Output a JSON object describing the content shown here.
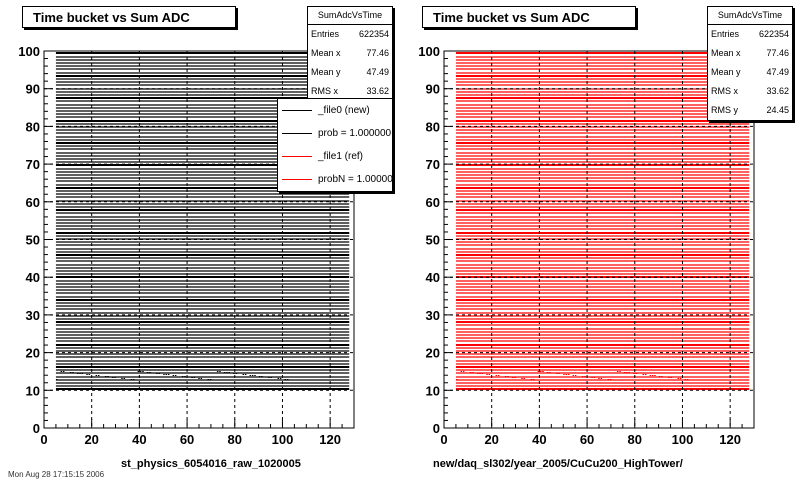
{
  "footer_text": "Mon Aug 28 17:15:15 2006",
  "colors": {
    "file0": "#000000",
    "file1": "#ff0000"
  },
  "chart_data": [
    {
      "type": "heatmap",
      "title": "Time bucket vs Sum ADC",
      "xlabel": "st_physics_6054016_raw_1020005",
      "ylabel": "",
      "xlim": [
        0,
        130
      ],
      "ylim": [
        0,
        100
      ],
      "xticks": [
        0,
        20,
        40,
        60,
        80,
        100,
        120
      ],
      "yticks": [
        0,
        10,
        20,
        30,
        40,
        50,
        60,
        70,
        80,
        90,
        100
      ],
      "grid": true,
      "fill_x_range": [
        5,
        128
      ],
      "fill_y_range": [
        10,
        100
      ],
      "series_color": "#000000",
      "stats": {
        "name": "SumAdcVsTime",
        "rows": [
          {
            "label": "Entries",
            "value": "622354"
          },
          {
            "label": "Mean x",
            "value": "77.46"
          },
          {
            "label": "Mean y",
            "value": "47.49"
          },
          {
            "label": "RMS x",
            "value": "33.62"
          }
        ]
      },
      "legend": {
        "placement": "top-right",
        "entries": [
          {
            "label": "_file0 (new)",
            "color": "#000000"
          },
          {
            "label": "prob = 1.000000",
            "color": "#000000"
          },
          {
            "label": "_file1 (ref)",
            "color": "#ff0000"
          },
          {
            "label": "probN = 1.000000",
            "color": "#ff0000"
          }
        ]
      }
    },
    {
      "type": "heatmap",
      "title": "Time bucket vs Sum ADC",
      "xlabel": "new/daq_sl302/year_2005/CuCu200_HighTower/",
      "ylabel": "",
      "xlim": [
        0,
        130
      ],
      "ylim": [
        0,
        100
      ],
      "xticks": [
        0,
        20,
        40,
        60,
        80,
        100,
        120
      ],
      "yticks": [
        0,
        10,
        20,
        30,
        40,
        50,
        60,
        70,
        80,
        90,
        100
      ],
      "grid": true,
      "fill_x_range": [
        5,
        128
      ],
      "fill_y_range": [
        10,
        100
      ],
      "series_color": "#ff0000",
      "stats": {
        "name": "SumAdcVsTime",
        "rows": [
          {
            "label": "Entries",
            "value": "622354"
          },
          {
            "label": "Mean x",
            "value": "77.46"
          },
          {
            "label": "Mean y",
            "value": "47.49"
          },
          {
            "label": "RMS x",
            "value": "33.62"
          },
          {
            "label": "RMS y",
            "value": "24.45"
          }
        ]
      }
    }
  ]
}
